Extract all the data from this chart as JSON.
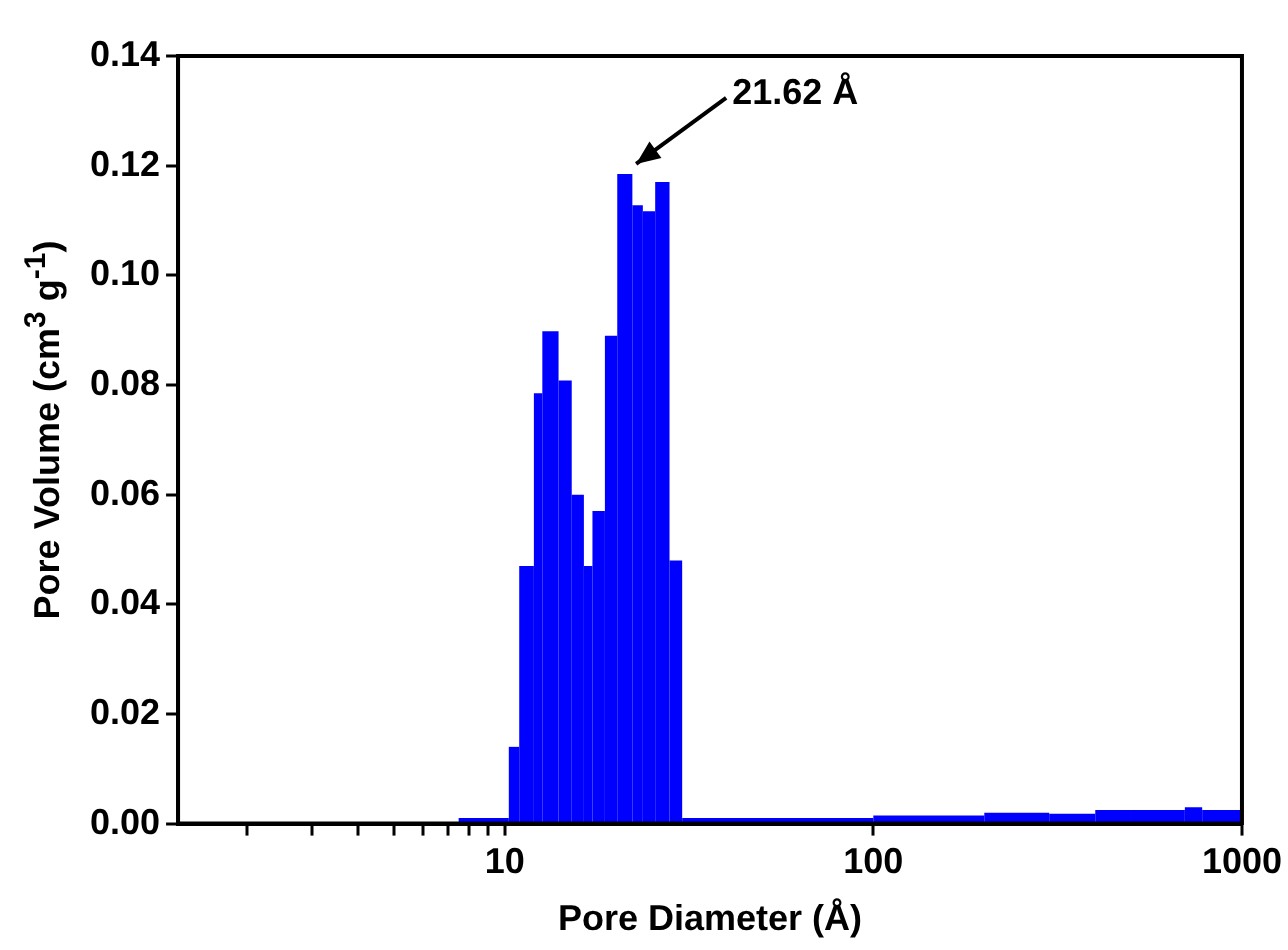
{
  "chart_data": {
    "type": "histogram",
    "xlabel": "Pore Diameter (Å)",
    "ylabel": "Pore Volume (cm$^{3}$ g$^{-1}$)",
    "color": "#0000ff",
    "log": "x",
    "bins": [
      7.5,
      10.26,
      10.95,
      12.0,
      12.65,
      14.0,
      15.2,
      16.4,
      17.3,
      18.7,
      20.2,
      22.2,
      23.7,
      25.6,
      28.0,
      30.3,
      100,
      200,
      300,
      400,
      500,
      700,
      780,
      1000
    ],
    "values": [
      0.001,
      0.014,
      0.047,
      0.0785,
      0.0898,
      0.0808,
      0.06,
      0.047,
      0.057,
      0.089,
      0.1185,
      0.1128,
      0.1117,
      0.117,
      0.048,
      0.001,
      0.0015,
      0.002,
      0.0018,
      0.0025,
      0.0025,
      0.003,
      0.0025
    ],
    "xlim": [
      1.3,
      1000
    ],
    "xticks": [
      {
        "value": 2,
        "label": null
      },
      {
        "value": 3,
        "label": null
      },
      {
        "value": 4,
        "label": null
      },
      {
        "value": 5,
        "label": null
      },
      {
        "value": 6,
        "label": null
      },
      {
        "value": 7,
        "label": null
      },
      {
        "value": 8,
        "label": null
      },
      {
        "value": 9,
        "label": null
      },
      10,
      100,
      1000
    ],
    "ylim": [
      0,
      0.14
    ],
    "yticks": [
      {
        "value": 0,
        "label": "0.00"
      },
      {
        "value": 0.02,
        "label": "0.02"
      },
      {
        "value": 0.04,
        "label": "0.04"
      },
      {
        "value": 0.06,
        "label": "0.06"
      },
      {
        "value": 0.08,
        "label": "0.08"
      },
      {
        "value": 0.1,
        "label": "0.10"
      },
      {
        "value": 0.12,
        "label": "0.12"
      },
      {
        "value": 0.14,
        "label": "0.14"
      }
    ],
    "grid": false,
    "legend": false,
    "annotations": [
      {
        "text": "21.62 Å",
        "x": 21.62,
        "y": 0.1185
      }
    ]
  }
}
